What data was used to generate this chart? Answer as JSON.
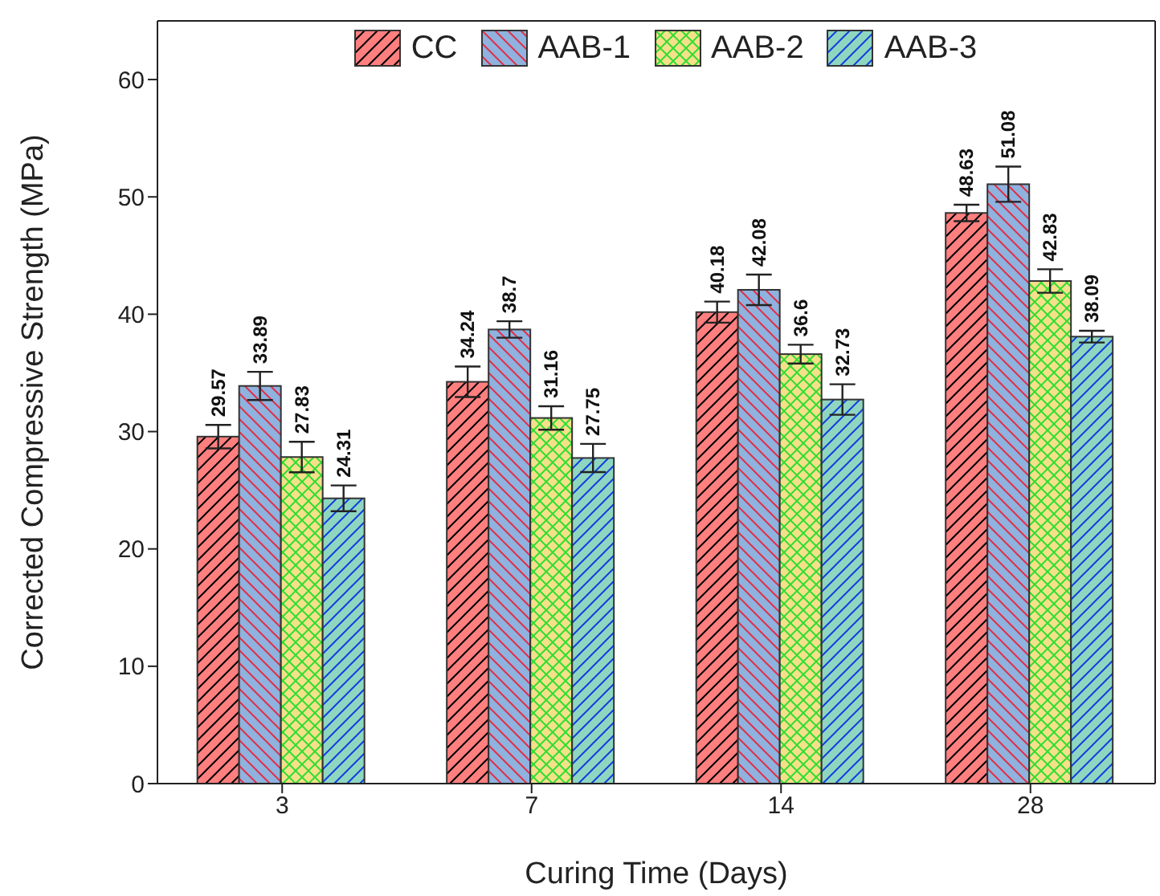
{
  "chart_data": {
    "type": "bar",
    "xlabel": "Curing Time (Days)",
    "ylabel": "Corrected Compressive Strength (MPa)",
    "categories": [
      "3",
      "7",
      "14",
      "28"
    ],
    "series": [
      {
        "name": "CC",
        "color": "#ff7f7f",
        "values": [
          29.57,
          34.24,
          40.18,
          48.63
        ],
        "errors": [
          1.0,
          1.3,
          0.9,
          0.7
        ]
      },
      {
        "name": "AAB-1",
        "color": "#8fb2de",
        "values": [
          33.89,
          38.7,
          42.08,
          51.08
        ],
        "errors": [
          1.2,
          0.7,
          1.3,
          1.5
        ]
      },
      {
        "name": "AAB-2",
        "color": "#f5e08a",
        "values": [
          27.83,
          31.16,
          36.6,
          42.83
        ],
        "errors": [
          1.3,
          1.0,
          0.8,
          1.0
        ]
      },
      {
        "name": "AAB-3",
        "color": "#8fd6c0",
        "values": [
          24.31,
          27.75,
          32.73,
          38.09
        ],
        "errors": [
          1.1,
          1.2,
          1.3,
          0.5
        ]
      }
    ],
    "ylim": [
      0,
      65
    ],
    "yticks": [
      0,
      10,
      20,
      30,
      40,
      50,
      60
    ],
    "grid": false,
    "legend": "top",
    "data_labels": true
  }
}
